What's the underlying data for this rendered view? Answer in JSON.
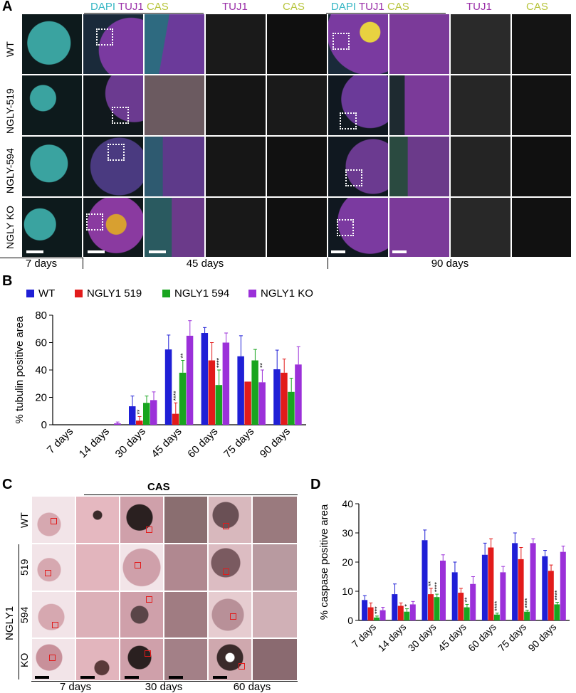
{
  "panel_a": {
    "letter": "A",
    "headers": {
      "group1": {
        "dapi": "DAPI",
        "tuj1": "TUJ1",
        "cas": "CAS"
      },
      "tuj1_a": "TUJ1",
      "cas_a": "CAS",
      "group2": {
        "dapi": "DAPI",
        "tuj1": "TUJ1",
        "cas": "CAS"
      },
      "tuj1_b": "TUJ1",
      "cas_b": "CAS"
    },
    "rows": [
      "WT",
      "NGLY-519",
      "NGLY-594",
      "NGLY KO"
    ],
    "timepoints": [
      "7 days",
      "45 days",
      "90 days"
    ]
  },
  "panel_b": {
    "letter": "B",
    "chart_data": {
      "type": "bar",
      "ylabel": "% tubulin positive area",
      "ylim": [
        0,
        80
      ],
      "yticks": [
        0,
        20,
        40,
        60,
        80
      ],
      "categories": [
        "7 days",
        "14 days",
        "30 days",
        "45 days",
        "60 days",
        "75 days",
        "90 days"
      ],
      "series": [
        {
          "name": "WT",
          "color": "#1f1fd6",
          "values": [
            0,
            0,
            13.5,
            55,
            67,
            50,
            40.5
          ],
          "errors": [
            0,
            0,
            7.5,
            10.5,
            4,
            15,
            14
          ]
        },
        {
          "name": "NGLY1 519",
          "color": "#e21b1b",
          "values": [
            0,
            0,
            3,
            8,
            47,
            31.5,
            38
          ],
          "errors": [
            0,
            0,
            3,
            8,
            13,
            0,
            10
          ]
        },
        {
          "name": "NGLY1 594",
          "color": "#19a51f",
          "values": [
            0,
            0,
            16,
            38,
            29,
            47,
            24
          ],
          "errors": [
            0,
            0,
            5,
            9,
            11,
            8,
            10
          ]
        },
        {
          "name": "NGLY1 KO",
          "color": "#9b30d9",
          "values": [
            0,
            1,
            18,
            65,
            60,
            31,
            44
          ],
          "errors": [
            0,
            1,
            6,
            11,
            7,
            9,
            13
          ]
        }
      ],
      "annotations": [
        {
          "category": "30 days",
          "series": "NGLY1 519",
          "text": "**"
        },
        {
          "category": "45 days",
          "series": "NGLY1 519",
          "text": "****"
        },
        {
          "category": "45 days",
          "series": "NGLY1 594",
          "text": "**"
        },
        {
          "category": "60 days",
          "series": "NGLY1 594",
          "text": "****"
        },
        {
          "category": "75 days",
          "series": "NGLY1 KO",
          "text": "**"
        }
      ]
    }
  },
  "panel_c": {
    "letter": "C",
    "title": "CAS",
    "rows": [
      "WT",
      "519",
      "594",
      "KO"
    ],
    "group_label": "NGLY1",
    "timepoints": [
      "7 days",
      "30 days",
      "60 days"
    ]
  },
  "panel_d": {
    "letter": "D",
    "chart_data": {
      "type": "bar",
      "ylabel": "% caspase positive area",
      "ylim": [
        0,
        40
      ],
      "yticks": [
        0,
        10,
        20,
        30,
        40
      ],
      "categories": [
        "7 days",
        "14 days",
        "30 days",
        "45 days",
        "60 days",
        "75 days",
        "90 days"
      ],
      "series": [
        {
          "name": "WT",
          "color": "#1f1fd6",
          "values": [
            7,
            9,
            27.5,
            16.5,
            22.5,
            26.5,
            22
          ],
          "errors": [
            1.5,
            3.5,
            3.5,
            3.5,
            4,
            3.5,
            2
          ]
        },
        {
          "name": "NGLY1 519",
          "color": "#e21b1b",
          "values": [
            4.5,
            5,
            9,
            9.5,
            25,
            21,
            17
          ],
          "errors": [
            1.5,
            1,
            2,
            1.5,
            3,
            4,
            2
          ]
        },
        {
          "name": "NGLY1 594",
          "color": "#19a51f",
          "values": [
            1,
            3,
            8,
            4.5,
            2,
            3,
            5.5
          ],
          "errors": [
            0.5,
            1,
            1,
            1,
            0.5,
            0.5,
            0.7
          ]
        },
        {
          "name": "NGLY1 KO",
          "color": "#9b30d9",
          "values": [
            3.5,
            5.5,
            20.5,
            12.5,
            16.5,
            26.5,
            23.5
          ],
          "errors": [
            1,
            1,
            2,
            2.5,
            2,
            1.5,
            2
          ]
        }
      ],
      "annotations": [
        {
          "category": "7 days",
          "series": "NGLY1 594",
          "text": "***"
        },
        {
          "category": "14 days",
          "series": "NGLY1 594",
          "text": "*"
        },
        {
          "category": "30 days",
          "series": "NGLY1 519",
          "text": "**"
        },
        {
          "category": "30 days",
          "series": "NGLY1 594",
          "text": "****"
        },
        {
          "category": "45 days",
          "series": "NGLY1 594",
          "text": "**"
        },
        {
          "category": "60 days",
          "series": "NGLY1 594",
          "text": "****"
        },
        {
          "category": "75 days",
          "series": "NGLY1 594",
          "text": "****"
        },
        {
          "category": "90 days",
          "series": "NGLY1 594",
          "text": "****"
        }
      ]
    }
  }
}
